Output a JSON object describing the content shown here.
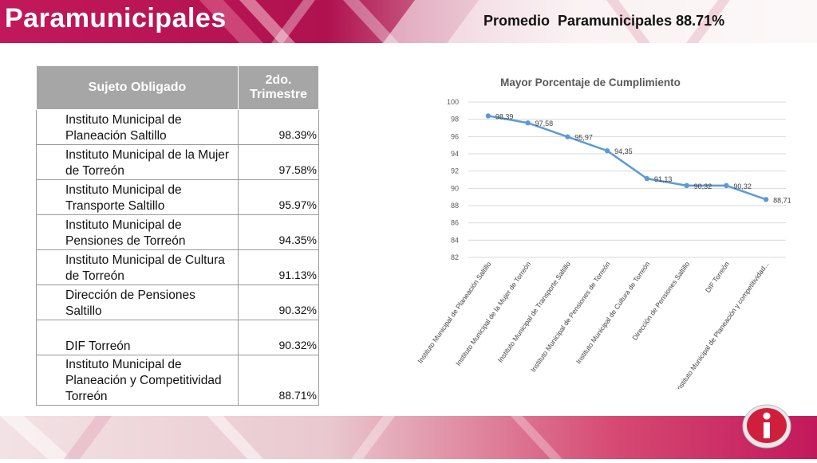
{
  "header": {
    "title": "Paramunicipales",
    "promedio": "Promedio  Paramunicipales 88.71%"
  },
  "table": {
    "headers": [
      "Sujeto Obligado",
      "2do. Trimestre"
    ],
    "rows": [
      {
        "name": "Instituto Municipal de Planeación Saltillo",
        "pct": "98.39%"
      },
      {
        "name": "Instituto Municipal de la Mujer de Torreón",
        "pct": "97.58%"
      },
      {
        "name": "Instituto Municipal de Transporte Saltillo",
        "pct": "95.97%"
      },
      {
        "name": "Instituto Municipal de Pensiones de Torreón",
        "pct": "94.35%"
      },
      {
        "name": "Instituto Municipal de Cultura de Torreón",
        "pct": "91.13%"
      },
      {
        "name": "Dirección de Pensiones Saltillo",
        "pct": "90.32%"
      },
      {
        "name": "DIF Torreón",
        "pct": "90.32%"
      },
      {
        "name": "Instituto Municipal de Planeación y Competitividad Torreón",
        "pct": "88.71%"
      }
    ]
  },
  "chart_data": {
    "type": "line",
    "title": "Mayor Porcentaje de Cumplimiento",
    "categories": [
      "Instituto Municipal de Planeación Saltillo",
      "Instituto Municipal de la Mujer de Torreón",
      "Instituto Municipal de Transporte Saltillo",
      "Instituto Municipal de Pensiones de Torreón",
      "Instituto Municipal de Cultura de Torreón",
      "Dirección de Pensiones Saltillo",
      "DIF Torreón",
      "Instituto Municipal de Planeación y competitividad..."
    ],
    "values": [
      98.39,
      97.58,
      95.97,
      94.35,
      91.13,
      90.32,
      90.32,
      88.71
    ],
    "value_labels": [
      "98,39",
      "97,58",
      "95,97",
      "94,35",
      "91,13",
      "90,32",
      "90,32",
      "88,71"
    ],
    "ylim": [
      82,
      100
    ],
    "yticks": [
      82,
      84,
      86,
      88,
      90,
      92,
      94,
      96,
      98,
      100
    ],
    "grid": true,
    "line_color": "#5b9bd5"
  }
}
